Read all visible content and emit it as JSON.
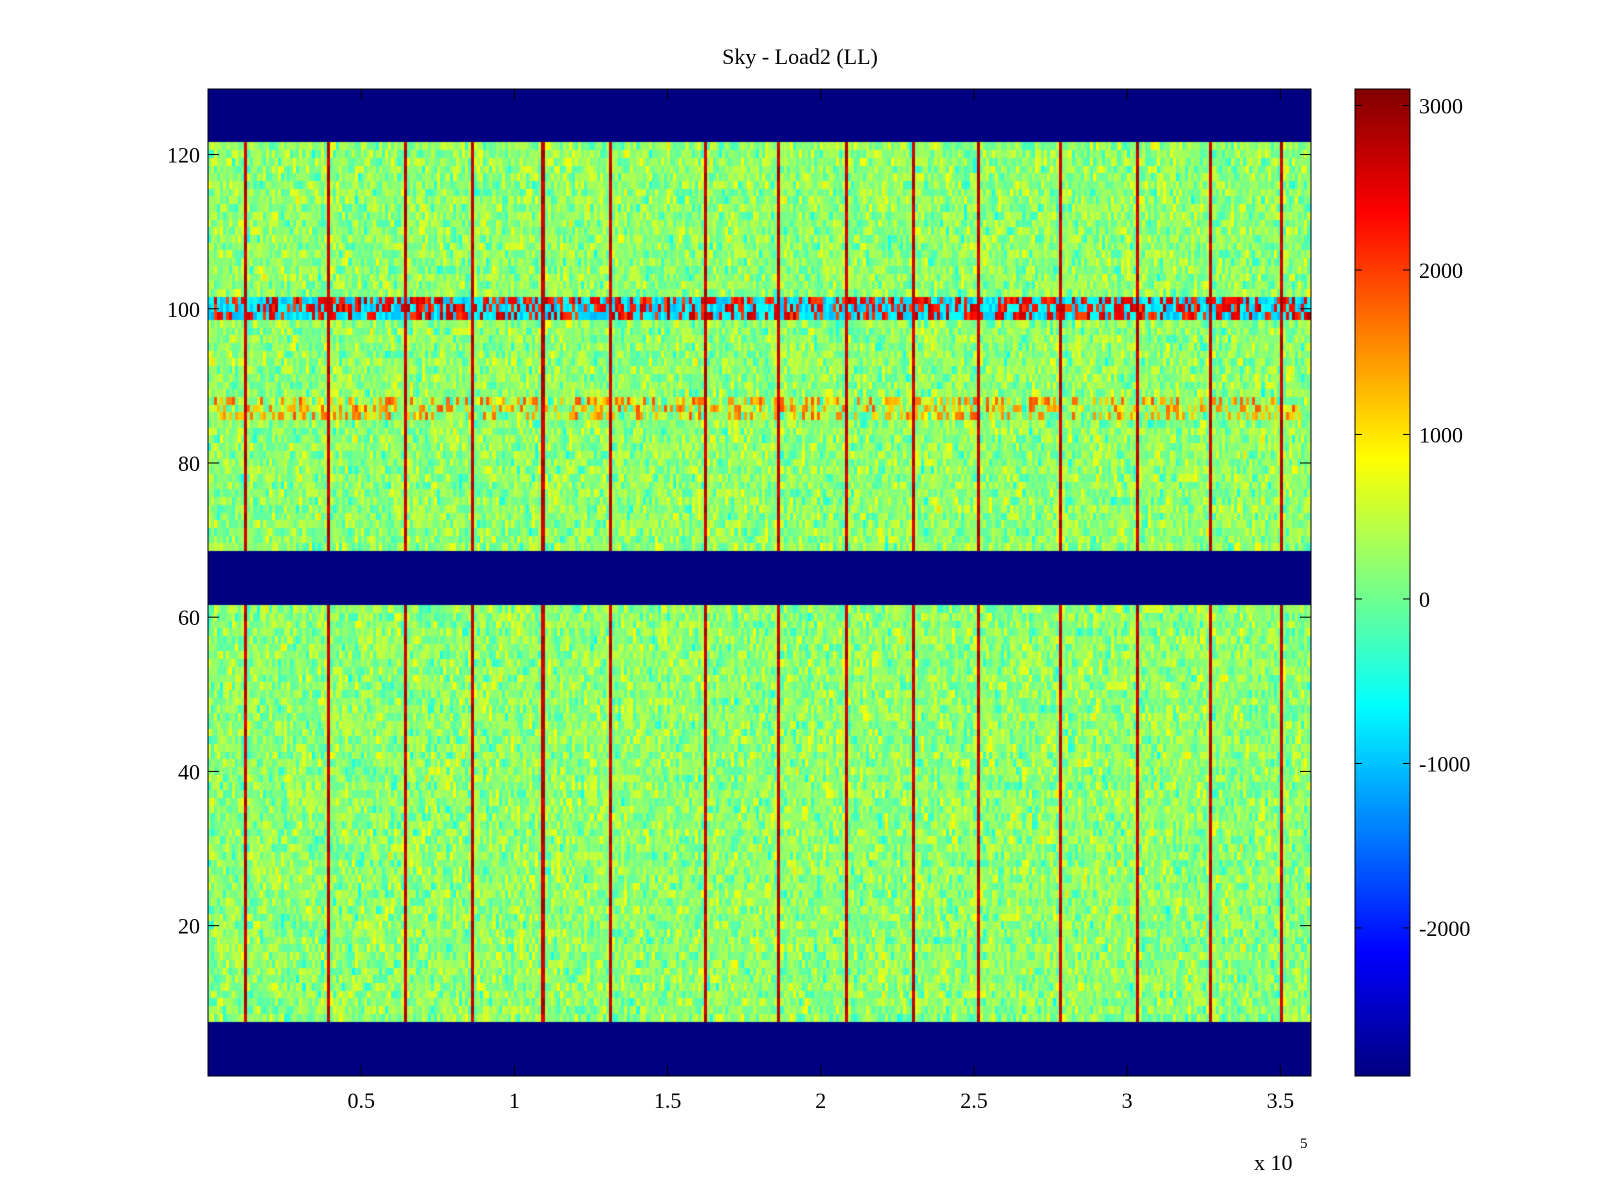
{
  "chart_data": {
    "type": "heatmap",
    "title": "Sky - Load2 (LL)",
    "xlabel": "",
    "ylabel": "",
    "x_multiplier_label": "x 10",
    "x_multiplier_exp": "5",
    "xlim": [
      0,
      3.6
    ],
    "ylim": [
      0.5,
      128.5
    ],
    "x_ticks": [
      0.5,
      1,
      1.5,
      2,
      2.5,
      3,
      3.5
    ],
    "x_tick_labels": [
      "0.5",
      "1",
      "1.5",
      "2",
      "2.5",
      "3",
      "3.5"
    ],
    "y_ticks": [
      20,
      40,
      60,
      80,
      100,
      120
    ],
    "y_tick_labels": [
      "20",
      "40",
      "60",
      "80",
      "100",
      "120"
    ],
    "colormap": "jet",
    "clim": [
      -2900,
      3100
    ],
    "colorbar_ticks": [
      3000,
      2000,
      1000,
      0,
      -1000,
      -2000
    ],
    "colorbar_tick_labels": [
      "3000",
      "2000",
      "1000",
      "0",
      "-1000",
      "-2000"
    ],
    "masked_channel_ranges": [
      [
        1,
        7
      ],
      [
        62,
        68
      ],
      [
        122,
        128
      ]
    ],
    "masked_value": -2900,
    "background_level": 200,
    "noise_amplitude": 450,
    "hot_channel_band": [
      99,
      101
    ],
    "hot_channel_values": [
      -1100,
      2800
    ],
    "warm_channel_band": [
      86,
      88
    ],
    "spike_columns_x1e5": [
      0.115,
      0.39,
      0.64,
      0.86,
      1.09,
      1.31,
      1.62,
      1.86,
      2.08,
      2.3,
      2.51,
      2.78,
      3.03,
      3.27,
      3.5
    ],
    "spike_value": 2900,
    "colors": {
      "masked": "#00008f",
      "background": "#ffffff",
      "axis": "#000000"
    }
  }
}
